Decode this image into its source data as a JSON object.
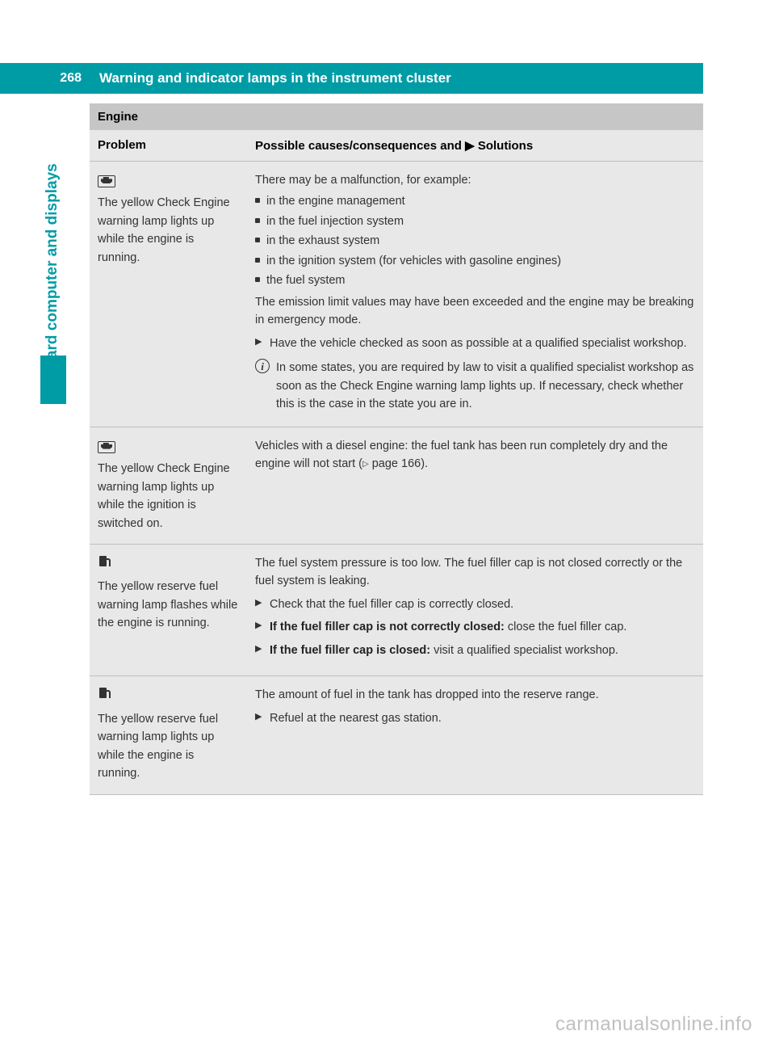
{
  "page": {
    "number": "268",
    "title": "Warning and indicator lamps in the instrument cluster",
    "side_label": "On-board computer and displays"
  },
  "section": {
    "title": "Engine"
  },
  "table": {
    "header": {
      "col1": "Problem",
      "col2_prefix": "Possible causes/consequences and ",
      "col2_suffix": " Solutions"
    }
  },
  "row1": {
    "problem": "The yellow Check Engine warning lamp lights up while the engine is running.",
    "intro": "There may be a malfunction, for example:",
    "b1": "in the engine management",
    "b2": "in the fuel injection system",
    "b3": "in the exhaust system",
    "b4": "in the ignition system (for vehicles with gasoline engines)",
    "b5": "the fuel system",
    "para": "The emission limit values may have been exceeded and the engine may be breaking in emergency mode.",
    "action": "Have the vehicle checked as soon as possible at a qualified specialist workshop.",
    "info": "In some states, you are required by law to visit a qualified specialist workshop as soon as the Check Engine warning lamp lights up. If necessary, check whether this is the case in the state you are in."
  },
  "row2": {
    "problem": "The yellow Check Engine warning lamp lights up while the ignition is switched on.",
    "text_a": "Vehicles with a diesel engine: the fuel tank has been run completely dry and the engine will not start (",
    "text_b": " page 166)."
  },
  "row3": {
    "problem": "The yellow reserve fuel warning lamp flashes while the engine is running.",
    "para": "The fuel system pressure is too low. The fuel filler cap is not closed correctly or the fuel system is leaking.",
    "a1": "Check that the fuel filler cap is correctly closed.",
    "a2_bold": "If the fuel filler cap is not correctly closed: ",
    "a2_rest": "close the fuel filler cap.",
    "a3_bold": "If the fuel filler cap is closed: ",
    "a3_rest": "visit a qualified specialist workshop."
  },
  "row4": {
    "problem": "The yellow reserve fuel warning lamp lights up while the engine is running.",
    "para": "The amount of fuel in the tank has dropped into the reserve range.",
    "a1": "Refuel at the nearest gas station."
  },
  "watermark": "carmanualsonline.info",
  "colors": {
    "teal": "#009ca6",
    "header_gray": "#c6c6c6",
    "row_gray": "#e8e8e8",
    "border_gray": "#bfbfbf",
    "text": "#333333"
  }
}
